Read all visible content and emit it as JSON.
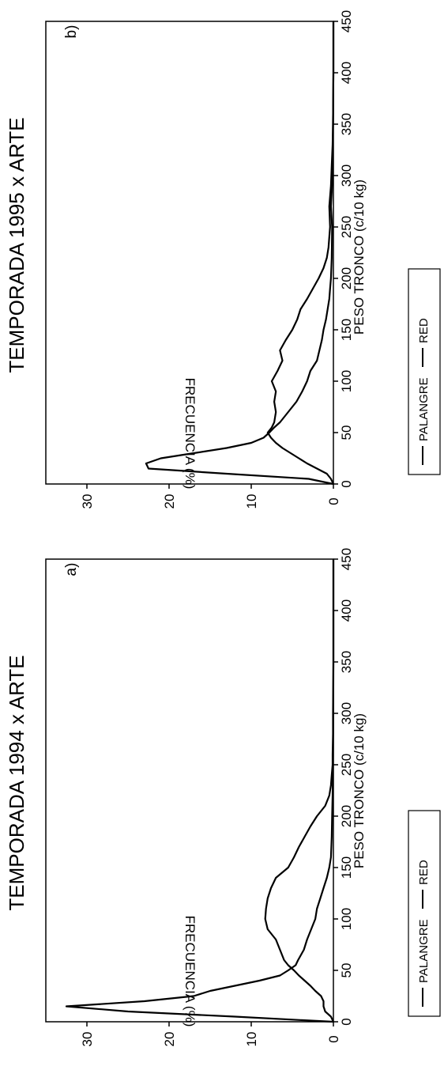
{
  "chart_data": [
    {
      "type": "line",
      "panel": "a)",
      "title": "TEMPORADA 1994  x ARTE",
      "xlabel": "PESO TRONCO (c/10 kg)",
      "ylabel": "FRECUENCIA (%)",
      "xlim": [
        0,
        450
      ],
      "ylim": [
        0,
        35
      ],
      "xticks": [
        0,
        50,
        100,
        150,
        200,
        250,
        300,
        350,
        400,
        450
      ],
      "yticks": [
        0,
        10,
        20,
        30
      ],
      "grid": false,
      "legend_position": "below",
      "series": [
        {
          "name": "PALANGRE",
          "x": [
            0,
            5,
            10,
            15,
            20,
            25,
            30,
            35,
            40,
            45,
            50,
            55,
            60,
            70,
            80,
            90,
            100,
            110,
            120,
            130,
            140,
            150,
            160,
            170,
            180,
            190,
            200,
            210,
            220,
            230,
            240,
            250,
            260,
            280,
            300,
            350,
            400,
            450
          ],
          "y": [
            0,
            0.3,
            1.0,
            1.2,
            1.2,
            1.5,
            2.2,
            2.8,
            3.5,
            4.2,
            4.8,
            5.5,
            6.0,
            6.5,
            7.0,
            8.0,
            8.3,
            8.2,
            8.0,
            7.6,
            7.0,
            5.5,
            4.8,
            4.2,
            3.5,
            2.8,
            2.0,
            1.0,
            0.5,
            0.3,
            0.2,
            0.1,
            0.1,
            0.05,
            0.05,
            0,
            0,
            0
          ]
        },
        {
          "name": "RED",
          "x": [
            0,
            5,
            10,
            15,
            20,
            25,
            30,
            35,
            40,
            45,
            50,
            55,
            60,
            70,
            80,
            90,
            100,
            110,
            120,
            130,
            140,
            150,
            160,
            170,
            180,
            200,
            220,
            250,
            300,
            350,
            400,
            450
          ],
          "y": [
            0,
            12,
            25,
            32.5,
            23,
            17,
            15,
            12,
            9,
            6.5,
            5.5,
            4.6,
            4.3,
            3.6,
            3.2,
            2.7,
            2.2,
            2.0,
            1.6,
            1.2,
            0.8,
            0.5,
            0.3,
            0.25,
            0.2,
            0.15,
            0.1,
            0.05,
            0.02,
            0,
            0,
            0
          ]
        }
      ]
    },
    {
      "type": "line",
      "panel": "b)",
      "title": "TEMPORADA 1995 x ARTE",
      "xlabel": "PESO TRONCO (c/10 kg)",
      "ylabel": "FRECUENCIA (%)",
      "xlim": [
        0,
        450
      ],
      "ylim": [
        0,
        35
      ],
      "xticks": [
        0,
        50,
        100,
        150,
        200,
        250,
        300,
        350,
        400,
        450
      ],
      "yticks": [
        0,
        10,
        20,
        30
      ],
      "grid": false,
      "legend_position": "below",
      "series": [
        {
          "name": "PALANGRE",
          "x": [
            0,
            5,
            10,
            15,
            20,
            25,
            30,
            35,
            40,
            45,
            50,
            55,
            60,
            70,
            80,
            90,
            100,
            110,
            120,
            130,
            140,
            150,
            160,
            170,
            180,
            190,
            200,
            210,
            220,
            230,
            250,
            270,
            290,
            310,
            330,
            350,
            400,
            450
          ],
          "y": [
            0,
            0.3,
            0.8,
            2.0,
            3.2,
            4.2,
            5.2,
            6.2,
            7.0,
            7.6,
            8.0,
            7.5,
            7.2,
            7.0,
            7.2,
            7.0,
            7.5,
            6.8,
            6.2,
            6.5,
            5.8,
            5.0,
            4.4,
            4.0,
            3.2,
            2.5,
            1.8,
            1.2,
            0.8,
            0.6,
            0.4,
            0.5,
            0.3,
            0.2,
            0.1,
            0.05,
            0,
            0
          ]
        },
        {
          "name": "RED",
          "x": [
            0,
            5,
            10,
            15,
            20,
            25,
            30,
            35,
            40,
            45,
            50,
            55,
            60,
            70,
            80,
            90,
            100,
            110,
            120,
            130,
            140,
            150,
            160,
            170,
            180,
            190,
            200,
            220,
            250,
            270,
            300,
            350,
            400,
            450
          ],
          "y": [
            0,
            3,
            13,
            22.5,
            22.8,
            21,
            17,
            13,
            10,
            8.5,
            7.8,
            7.2,
            6.5,
            5.5,
            4.5,
            3.8,
            3.2,
            2.8,
            2.0,
            1.7,
            1.4,
            1.2,
            0.9,
            0.7,
            0.5,
            0.4,
            0.3,
            0.2,
            0.15,
            0.3,
            0.1,
            0.05,
            0,
            0
          ]
        }
      ]
    }
  ]
}
